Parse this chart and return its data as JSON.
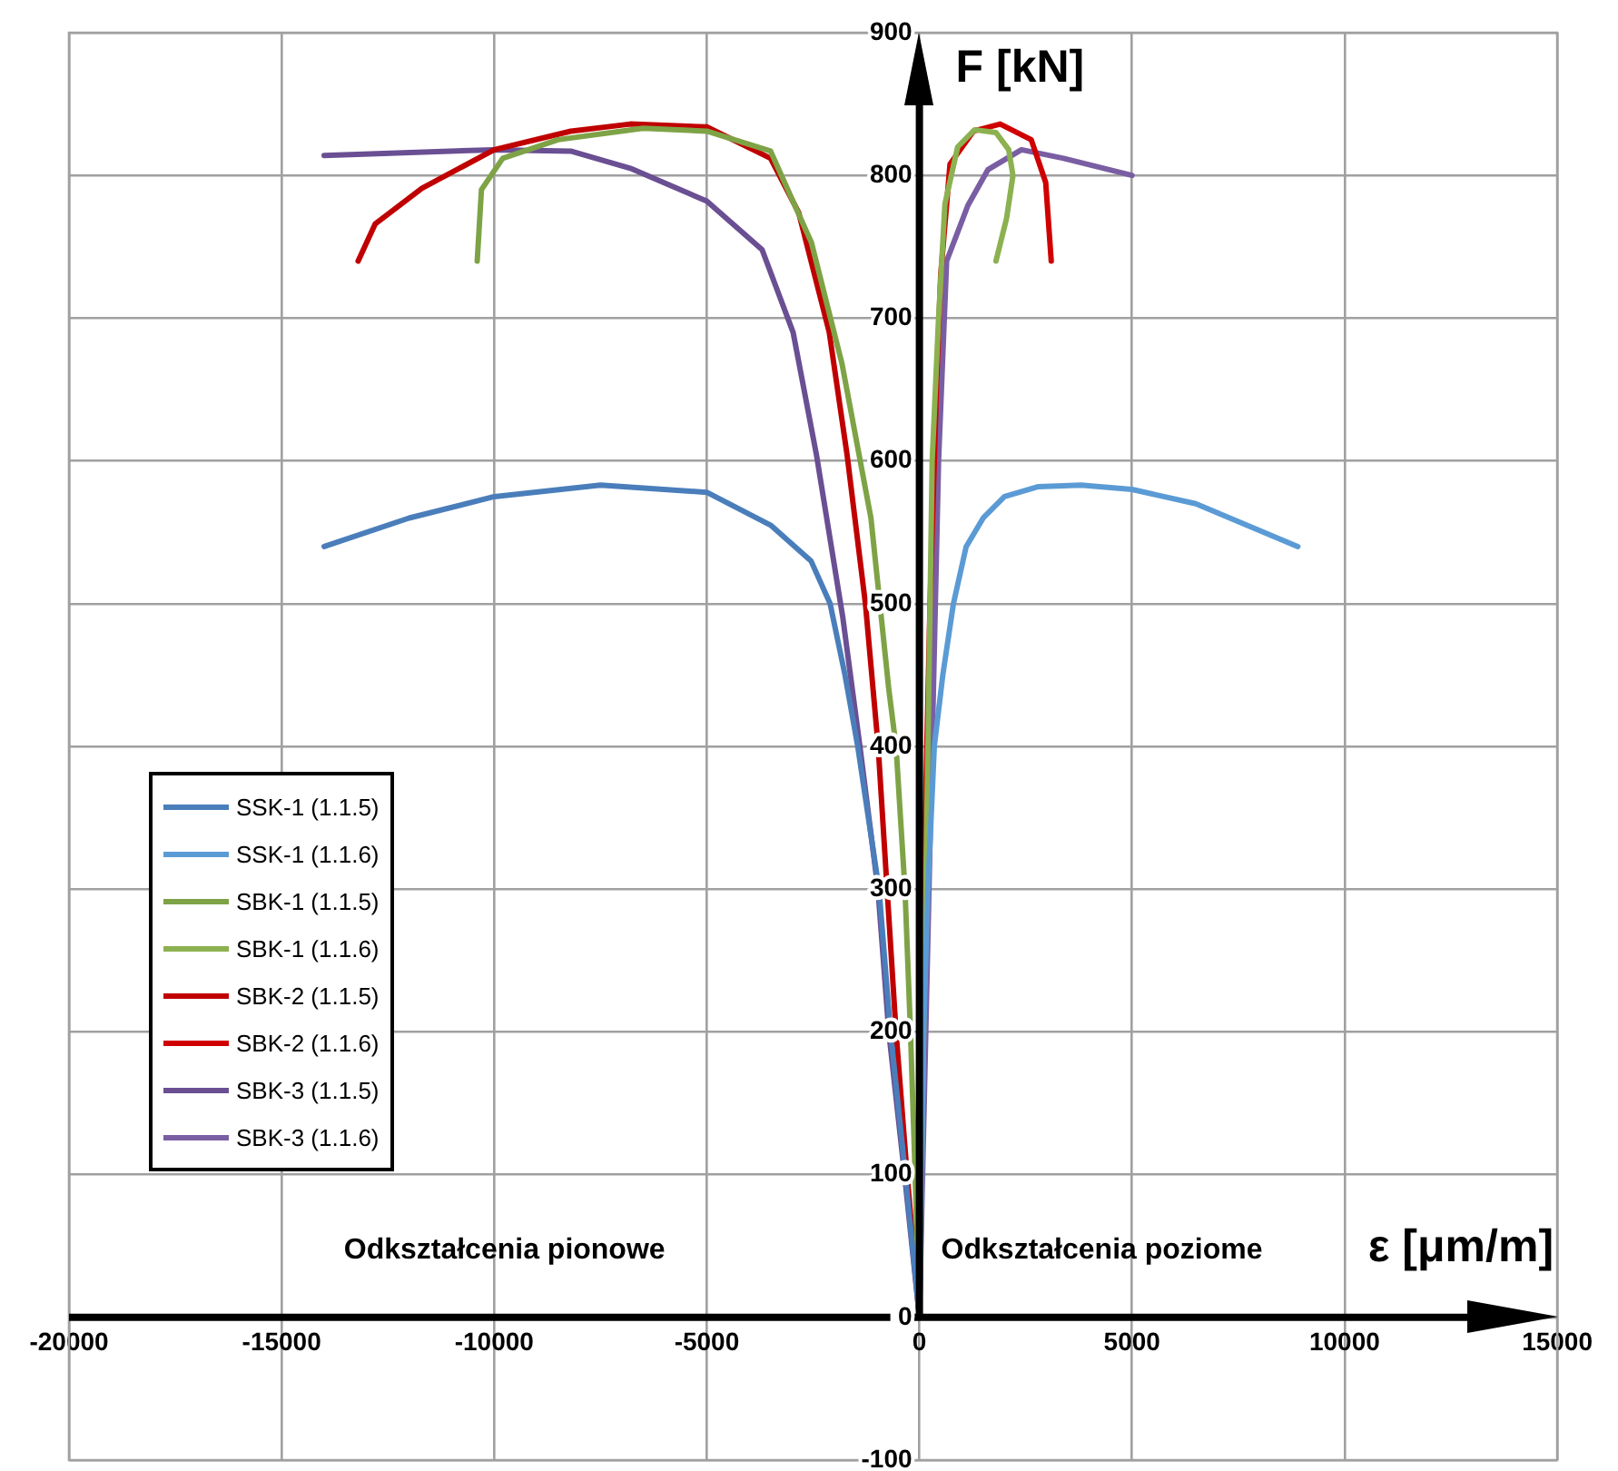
{
  "chart_data": {
    "type": "line",
    "xlabel": "ε [μm/m]",
    "ylabel": "F [kN]",
    "annotations": [
      "Odkształcenia pionowe",
      "Odkształcenia poziome"
    ],
    "xlim": [
      -20000,
      15000
    ],
    "xticks": [
      -20000,
      -15000,
      -10000,
      -5000,
      0,
      5000,
      10000,
      15000
    ],
    "ylim": [
      -100,
      900
    ],
    "yticks": [
      -100,
      0,
      100,
      200,
      300,
      400,
      500,
      600,
      700,
      800,
      900
    ],
    "grid": true,
    "legend": "left",
    "marker": "none",
    "line_style": "solid",
    "series": [
      {
        "name": "SSK-1 (1.1.5)",
        "color": "#4a7ebb",
        "x": [
          0,
          -330,
          -680,
          -950,
          -1450,
          -1750,
          -2100,
          -2550,
          -3500,
          -5000,
          -7500,
          -10000,
          -12000,
          -14000
        ],
        "values": [
          0,
          100,
          200,
          300,
          400,
          450,
          500,
          530,
          555,
          578,
          583,
          575,
          560,
          540
        ]
      },
      {
        "name": "SSK-1 (1.1.6)",
        "color": "#5b9bd5",
        "x": [
          0,
          100,
          200,
          350,
          550,
          800,
          1100,
          1500,
          2000,
          2800,
          3800,
          5000,
          6500,
          8900
        ],
        "values": [
          0,
          200,
          300,
          400,
          450,
          500,
          540,
          560,
          575,
          582,
          583,
          580,
          570,
          540
        ]
      },
      {
        "name": "SBK-1 (1.1.5)",
        "color": "#7ea346",
        "x": [
          0,
          -100,
          -210,
          -340,
          -550,
          -720,
          -1140,
          -1820,
          -2540,
          -3500,
          -5000,
          -6500,
          -8500,
          -9800,
          -10300,
          -10400
        ],
        "values": [
          0,
          100,
          200,
          300,
          400,
          440,
          560,
          668,
          753,
          817,
          831,
          833,
          825,
          812,
          790,
          740
        ]
      },
      {
        "name": "SBK-1 (1.1.6)",
        "color": "#8cb150",
        "x": [
          0,
          100,
          200,
          300,
          450,
          600,
          900,
          1300,
          1800,
          2100,
          2200,
          2050,
          1800
        ],
        "values": [
          0,
          200,
          400,
          600,
          700,
          780,
          820,
          832,
          830,
          818,
          800,
          770,
          740
        ]
      },
      {
        "name": "SBK-2 (1.1.5)",
        "color": "#c00000",
        "x": [
          0,
          -290,
          -550,
          -760,
          -970,
          -1270,
          -1700,
          -2120,
          -2840,
          -3500,
          -5000,
          -6800,
          -8200,
          -10000,
          -11700,
          -12800,
          -13200
        ],
        "values": [
          0,
          100,
          200,
          300,
          400,
          500,
          604,
          690,
          774,
          812,
          834,
          836,
          831,
          818,
          791,
          766,
          740
        ]
      },
      {
        "name": "SBK-2 (1.1.6)",
        "color": "#d00000",
        "x": [
          0,
          100,
          250,
          400,
          500,
          720,
          1270,
          1900,
          2630,
          2970,
          3100
        ],
        "values": [
          0,
          300,
          500,
          650,
          730,
          808,
          831,
          836,
          825,
          795,
          740
        ]
      },
      {
        "name": "SBK-3 (1.1.5)",
        "color": "#6a4f93",
        "x": [
          0,
          -350,
          -720,
          -975,
          -1400,
          -1800,
          -2420,
          -2970,
          -3700,
          -5000,
          -6800,
          -8200,
          -10000,
          -14000
        ],
        "values": [
          0,
          100,
          200,
          300,
          400,
          490,
          604,
          690,
          748,
          782,
          805,
          817,
          818,
          814
        ]
      },
      {
        "name": "SBK-3 (1.1.6)",
        "color": "#7a5ea3",
        "x": [
          0,
          150,
          300,
          450,
          640,
          1140,
          1610,
          2400,
          3390,
          5000
        ],
        "values": [
          0,
          200,
          400,
          600,
          740,
          779,
          804,
          818,
          812,
          800
        ]
      }
    ]
  }
}
